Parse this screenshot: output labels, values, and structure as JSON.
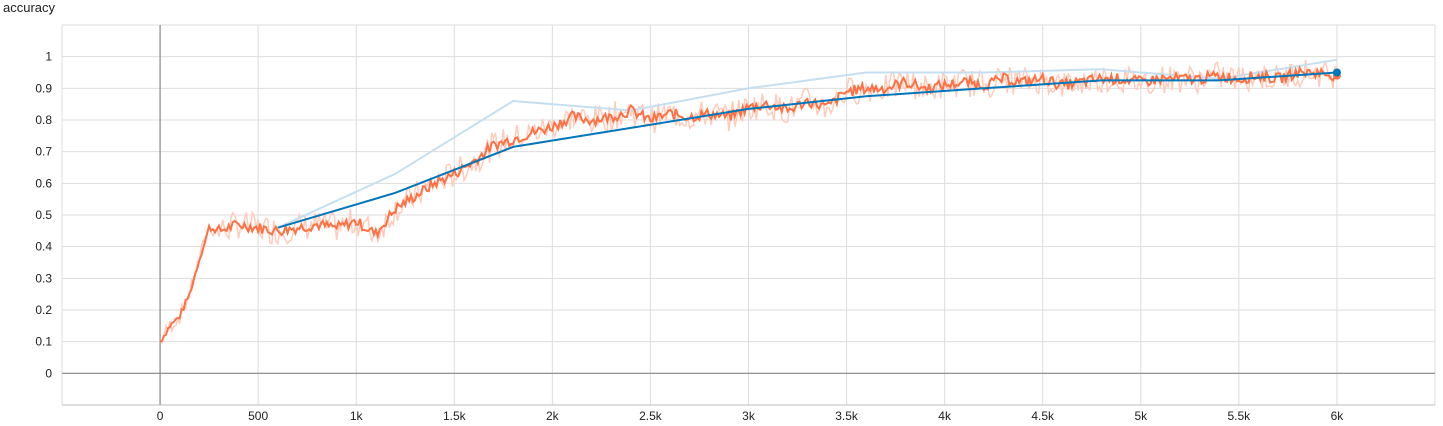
{
  "chart_data": {
    "type": "line",
    "title": "accuracy",
    "xlabel": "",
    "ylabel": "",
    "xlim": [
      -500,
      6500
    ],
    "ylim": [
      -0.1,
      1.1
    ],
    "x_ticks": [
      0,
      500,
      1000,
      1500,
      2000,
      2500,
      3000,
      3500,
      4000,
      4500,
      5000,
      5500,
      6000
    ],
    "x_tick_labels": [
      "0",
      "500",
      "1k",
      "1.5k",
      "2k",
      "2.5k",
      "3k",
      "3.5k",
      "4k",
      "4.5k",
      "5k",
      "5.5k",
      "6k"
    ],
    "y_ticks": [
      0,
      0.1,
      0.2,
      0.3,
      0.4,
      0.5,
      0.6,
      0.7,
      0.8,
      0.9,
      1
    ],
    "y_tick_labels": [
      "0",
      "0.1",
      "0.2",
      "0.3",
      "0.4",
      "0.5",
      "0.6",
      "0.7",
      "0.8",
      "0.9",
      "1"
    ],
    "grid": true,
    "legend": "none",
    "series": [
      {
        "color": "#ff7043",
        "raw_color": "#ffccbc",
        "x": [
          0,
          50,
          100,
          150,
          200,
          250,
          300,
          400,
          500,
          600,
          700,
          800,
          900,
          1000,
          1100,
          1200,
          1300,
          1400,
          1500,
          1600,
          1700,
          1800,
          1900,
          2000,
          2100,
          2200,
          2300,
          2400,
          2500,
          2600,
          2700,
          2800,
          2900,
          3000,
          3100,
          3200,
          3300,
          3400,
          3500,
          3600,
          3700,
          3800,
          3900,
          4000,
          4100,
          4200,
          4300,
          4400,
          4500,
          4600,
          4700,
          4800,
          4900,
          5000,
          5100,
          5200,
          5300,
          5400,
          5500,
          5600,
          5700,
          5800,
          5900,
          6000
        ],
        "values": [
          0.1,
          0.15,
          0.18,
          0.25,
          0.36,
          0.46,
          0.45,
          0.47,
          0.46,
          0.45,
          0.46,
          0.47,
          0.46,
          0.48,
          0.44,
          0.52,
          0.56,
          0.6,
          0.63,
          0.67,
          0.72,
          0.74,
          0.76,
          0.78,
          0.81,
          0.8,
          0.81,
          0.83,
          0.8,
          0.82,
          0.81,
          0.82,
          0.81,
          0.84,
          0.85,
          0.83,
          0.86,
          0.84,
          0.89,
          0.9,
          0.9,
          0.92,
          0.9,
          0.91,
          0.92,
          0.91,
          0.93,
          0.92,
          0.93,
          0.91,
          0.92,
          0.93,
          0.93,
          0.92,
          0.93,
          0.93,
          0.93,
          0.94,
          0.93,
          0.94,
          0.93,
          0.95,
          0.95,
          0.94
        ]
      },
      {
        "color": "#0077bb",
        "raw_color": "#c6dff0",
        "x": [
          600,
          1200,
          1800,
          2400,
          3000,
          3600,
          4200,
          4800,
          5400,
          6000
        ],
        "values": [
          0.46,
          0.57,
          0.715,
          0.775,
          0.835,
          0.875,
          0.9,
          0.925,
          0.925,
          0.95
        ],
        "raw_values": [
          0.46,
          0.63,
          0.86,
          0.83,
          0.9,
          0.95,
          0.95,
          0.96,
          0.93,
          0.99
        ]
      }
    ]
  }
}
